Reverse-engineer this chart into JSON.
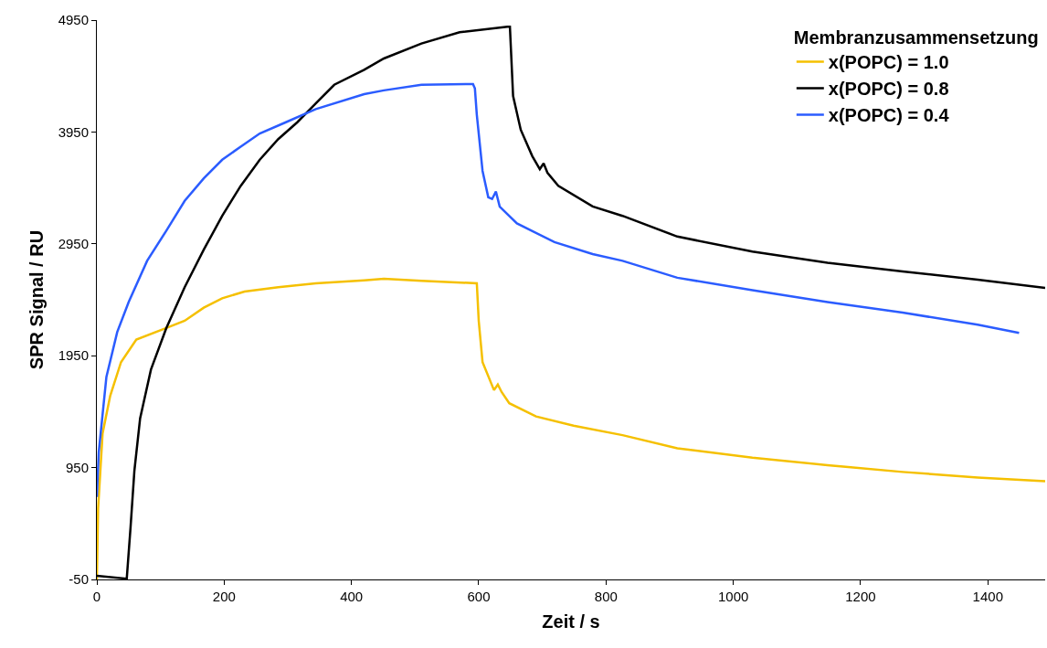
{
  "chart_data": {
    "type": "line",
    "xlabel": "Zeit / s",
    "ylabel": "SPR Signal / RU",
    "legend_title": "Membranzusammensetzung",
    "legend": "top right",
    "grid": false,
    "line_style": "solid",
    "marker": "none",
    "xlim": [
      0,
      1490
    ],
    "xticks": [
      0,
      200,
      400,
      600,
      800,
      1000,
      1200,
      1400
    ],
    "ylim": [
      -50,
      4950
    ],
    "yticks": [
      -50,
      950,
      1950,
      2950,
      3950,
      4950
    ],
    "series": [
      {
        "name": "x(POPC) = 1.0",
        "color": "#f5c000",
        "x": [
          0,
          2,
          9,
          21,
          38,
          62,
          110,
          138,
          168,
          197,
          232,
          285,
          344,
          420,
          451,
          510,
          597,
          600,
          606,
          624,
          630,
          636,
          648,
          690,
          749,
          826,
          912,
          1030,
          1148,
          1266,
          1384,
          1490
        ],
        "values": [
          -50,
          586,
          1256,
          1592,
          1893,
          2094,
          2200,
          2262,
          2379,
          2463,
          2523,
          2563,
          2597,
          2623,
          2637,
          2620,
          2597,
          2262,
          1893,
          1642,
          1692,
          1625,
          1525,
          1407,
          1324,
          1240,
          1123,
          1039,
          972,
          911,
          861,
          828
        ]
      },
      {
        "name": "x(POPC) = 0.8",
        "color": "#000000",
        "x": [
          0,
          47,
          53,
          59,
          68,
          85,
          109,
          138,
          168,
          197,
          226,
          256,
          285,
          315,
          344,
          373,
          420,
          451,
          510,
          570,
          645,
          649,
          654,
          666,
          684,
          696,
          702,
          708,
          725,
          779,
          826,
          912,
          1030,
          1148,
          1266,
          1384,
          1490
        ],
        "values": [
          -17,
          -43,
          419,
          922,
          1391,
          1826,
          2195,
          2563,
          2898,
          3200,
          3468,
          3702,
          3886,
          4037,
          4205,
          4372,
          4506,
          4607,
          4741,
          4841,
          4891,
          4891,
          4272,
          3970,
          3736,
          3618,
          3669,
          3585,
          3468,
          3284,
          3200,
          3015,
          2881,
          2781,
          2704,
          2630,
          2556
        ]
      },
      {
        "name": "x(POPC) = 0.4",
        "color": "#2b5cff",
        "x": [
          0,
          3,
          15,
          32,
          50,
          79,
          109,
          138,
          168,
          197,
          226,
          256,
          297,
          344,
          420,
          451,
          510,
          591,
          594,
          597,
          606,
          615,
          621,
          627,
          633,
          660,
          719,
          779,
          826,
          912,
          1030,
          1148,
          1266,
          1384,
          1449
        ],
        "values": [
          687,
          1089,
          1759,
          2161,
          2429,
          2798,
          3066,
          3334,
          3535,
          3702,
          3819,
          3937,
          4037,
          4154,
          4288,
          4322,
          4372,
          4379,
          4339,
          4104,
          3602,
          3367,
          3351,
          3417,
          3283,
          3133,
          2965,
          2858,
          2798,
          2647,
          2536,
          2429,
          2335,
          2228,
          2154
        ]
      }
    ]
  }
}
